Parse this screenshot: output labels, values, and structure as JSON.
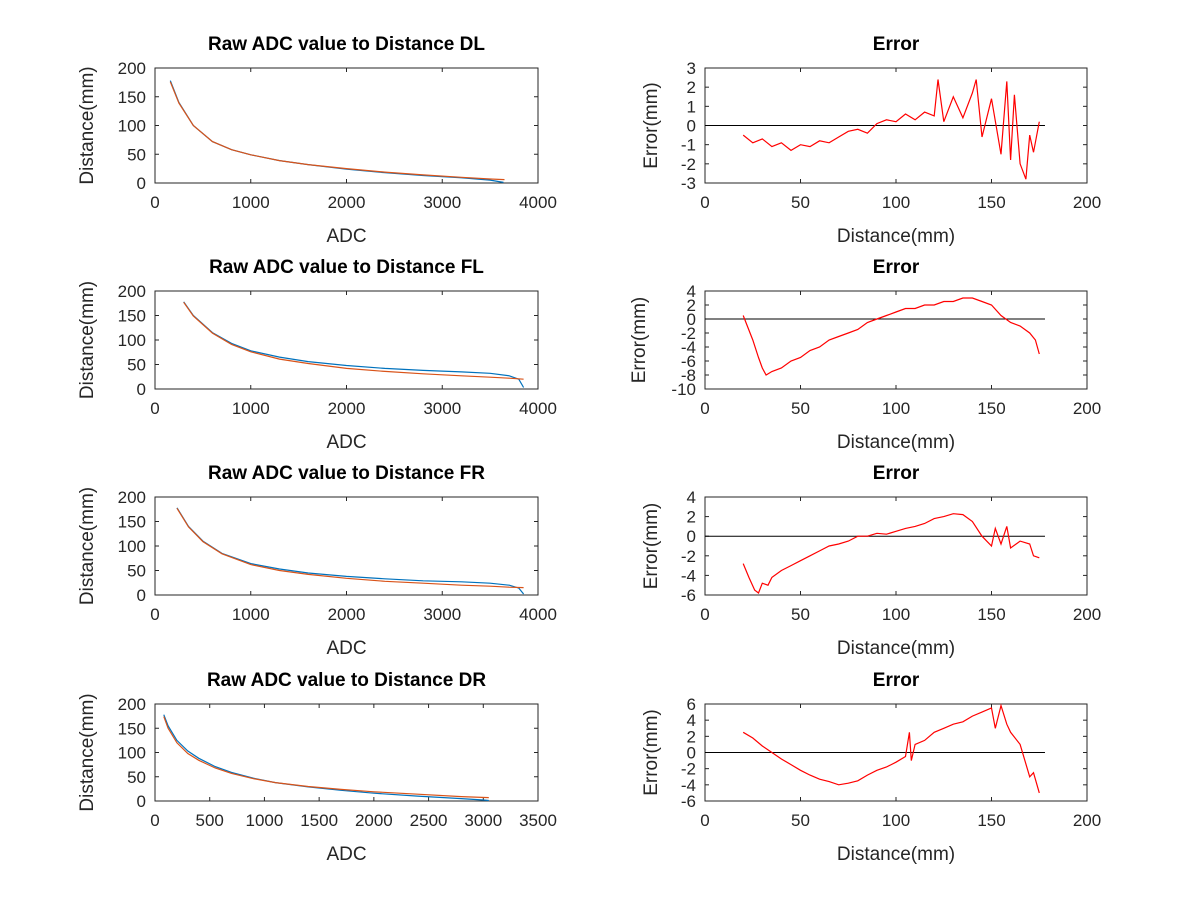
{
  "chart_data": [
    {
      "type": "line",
      "title": "Raw ADC value to Distance DL",
      "xlabel": "ADC",
      "ylabel": "Distance(mm)",
      "xlim": [
        0,
        4000
      ],
      "ylim": [
        0,
        200
      ],
      "xticks": [
        "0",
        "1000",
        "2000",
        "3000",
        "4000"
      ],
      "yticks": [
        "0",
        "50",
        "100",
        "150",
        "200"
      ],
      "grid": false,
      "series": [
        {
          "color": "#0072bd",
          "x": [
            160,
            250,
            400,
            600,
            800,
            1000,
            1300,
            1600,
            2000,
            2400,
            2800,
            3200,
            3500,
            3640
          ],
          "y": [
            178,
            140,
            100,
            72,
            58,
            49,
            39,
            32,
            24,
            18,
            13,
            9,
            5,
            1
          ]
        },
        {
          "color": "#d95319",
          "x": [
            160,
            250,
            400,
            600,
            800,
            1000,
            1300,
            1600,
            2000,
            2400,
            2800,
            3200,
            3500,
            3650
          ],
          "y": [
            176,
            139,
            100,
            72,
            58,
            49,
            39,
            32,
            25,
            19,
            14,
            10,
            7,
            6
          ]
        }
      ]
    },
    {
      "type": "line",
      "title": "Error",
      "xlabel": "Distance(mm)",
      "ylabel": "Error(mm)",
      "xlim": [
        0,
        200
      ],
      "ylim": [
        -3,
        3
      ],
      "xticks": [
        "0",
        "50",
        "100",
        "150",
        "200"
      ],
      "yticks": [
        "-3",
        "-2",
        "-1",
        "0",
        "1",
        "2",
        "3"
      ],
      "grid": false,
      "zero_line": true,
      "series": [
        {
          "color": "#ff0000",
          "x": [
            20,
            25,
            30,
            35,
            40,
            45,
            50,
            55,
            60,
            65,
            70,
            75,
            80,
            85,
            90,
            95,
            100,
            105,
            110,
            115,
            120,
            122,
            125,
            130,
            135,
            140,
            142,
            145,
            150,
            155,
            158,
            160,
            162,
            165,
            168,
            170,
            172,
            175
          ],
          "y": [
            -0.5,
            -0.9,
            -0.7,
            -1.1,
            -0.9,
            -1.3,
            -1.0,
            -1.1,
            -0.8,
            -0.9,
            -0.6,
            -0.3,
            -0.2,
            -0.4,
            0.1,
            0.3,
            0.2,
            0.6,
            0.3,
            0.7,
            0.5,
            2.4,
            0.2,
            1.5,
            0.4,
            1.7,
            2.4,
            -0.6,
            1.4,
            -1.5,
            2.3,
            -1.8,
            1.6,
            -2.0,
            -2.8,
            -0.5,
            -1.4,
            0.2
          ]
        }
      ]
    },
    {
      "type": "line",
      "title": "Raw ADC value to Distance FL",
      "xlabel": "ADC",
      "ylabel": "Distance(mm)",
      "xlim": [
        0,
        4000
      ],
      "ylim": [
        0,
        200
      ],
      "xticks": [
        "0",
        "1000",
        "2000",
        "3000",
        "4000"
      ],
      "yticks": [
        "0",
        "50",
        "100",
        "150",
        "200"
      ],
      "grid": false,
      "series": [
        {
          "color": "#0072bd",
          "x": [
            300,
            400,
            600,
            800,
            1000,
            1300,
            1600,
            2000,
            2400,
            2800,
            3200,
            3500,
            3700,
            3800,
            3850
          ],
          "y": [
            178,
            150,
            115,
            93,
            78,
            65,
            56,
            48,
            42,
            38,
            35,
            32,
            27,
            20,
            3
          ]
        },
        {
          "color": "#d95319",
          "x": [
            300,
            400,
            600,
            800,
            1000,
            1300,
            1600,
            2000,
            2400,
            2800,
            3200,
            3500,
            3700,
            3850
          ],
          "y": [
            177,
            149,
            114,
            91,
            76,
            61,
            52,
            42,
            36,
            31,
            27,
            24,
            22,
            20
          ]
        }
      ]
    },
    {
      "type": "line",
      "title": "Error",
      "xlabel": "Distance(mm)",
      "ylabel": "Error(mm)",
      "xlim": [
        0,
        200
      ],
      "ylim": [
        -10,
        4
      ],
      "xticks": [
        "0",
        "50",
        "100",
        "150",
        "200"
      ],
      "yticks": [
        "-10",
        "-8",
        "-6",
        "-4",
        "-2",
        "0",
        "2",
        "4"
      ],
      "grid": false,
      "zero_line": true,
      "series": [
        {
          "color": "#ff0000",
          "x": [
            20,
            25,
            28,
            30,
            32,
            35,
            40,
            45,
            50,
            55,
            60,
            65,
            70,
            75,
            80,
            85,
            90,
            95,
            100,
            105,
            110,
            115,
            120,
            125,
            130,
            135,
            140,
            145,
            150,
            155,
            160,
            165,
            170,
            173,
            175
          ],
          "y": [
            0.5,
            -3,
            -5.5,
            -7,
            -8,
            -7.5,
            -7,
            -6,
            -5.5,
            -4.5,
            -4,
            -3,
            -2.5,
            -2,
            -1.5,
            -0.5,
            0,
            0.5,
            1,
            1.5,
            1.5,
            2,
            2,
            2.5,
            2.5,
            3,
            3,
            2.5,
            2,
            0.5,
            -0.5,
            -1,
            -2,
            -3,
            -5
          ]
        }
      ]
    },
    {
      "type": "line",
      "title": "Raw ADC value to Distance FR",
      "xlabel": "ADC",
      "ylabel": "Distance(mm)",
      "xlim": [
        0,
        4000
      ],
      "ylim": [
        0,
        200
      ],
      "xticks": [
        "0",
        "1000",
        "2000",
        "3000",
        "4000"
      ],
      "yticks": [
        "0",
        "50",
        "100",
        "150",
        "200"
      ],
      "grid": false,
      "series": [
        {
          "color": "#0072bd",
          "x": [
            230,
            350,
            500,
            700,
            1000,
            1300,
            1600,
            2000,
            2400,
            2800,
            3200,
            3500,
            3700,
            3800,
            3850
          ],
          "y": [
            178,
            140,
            110,
            85,
            64,
            53,
            45,
            38,
            33,
            29,
            27,
            24,
            20,
            14,
            2
          ]
        },
        {
          "color": "#d95319",
          "x": [
            230,
            350,
            500,
            700,
            1000,
            1300,
            1600,
            2000,
            2400,
            2800,
            3200,
            3500,
            3700,
            3850
          ],
          "y": [
            177,
            139,
            109,
            84,
            62,
            50,
            42,
            34,
            28,
            24,
            20,
            18,
            16,
            15
          ]
        }
      ]
    },
    {
      "type": "line",
      "title": "Error",
      "xlabel": "Distance(mm)",
      "ylabel": "Error(mm)",
      "xlim": [
        0,
        200
      ],
      "ylim": [
        -6,
        4
      ],
      "xticks": [
        "0",
        "50",
        "100",
        "150",
        "200"
      ],
      "yticks": [
        "-6",
        "-4",
        "-2",
        "0",
        "2",
        "4"
      ],
      "grid": false,
      "zero_line": true,
      "series": [
        {
          "color": "#ff0000",
          "x": [
            20,
            23,
            26,
            28,
            30,
            33,
            35,
            40,
            45,
            50,
            55,
            60,
            65,
            70,
            75,
            80,
            85,
            90,
            95,
            100,
            105,
            110,
            115,
            120,
            125,
            130,
            135,
            140,
            145,
            150,
            152,
            155,
            158,
            160,
            165,
            170,
            172,
            175
          ],
          "y": [
            -2.8,
            -4.2,
            -5.5,
            -5.8,
            -4.8,
            -5.0,
            -4.2,
            -3.5,
            -3.0,
            -2.5,
            -2.0,
            -1.5,
            -1.0,
            -0.8,
            -0.5,
            0,
            0,
            0.3,
            0.2,
            0.5,
            0.8,
            1.0,
            1.3,
            1.8,
            2.0,
            2.3,
            2.2,
            1.5,
            0,
            -1.0,
            0.8,
            -0.8,
            1.0,
            -1.2,
            -0.5,
            -0.8,
            -2.0,
            -2.2
          ]
        }
      ]
    },
    {
      "type": "line",
      "title": "Raw ADC value to Distance DR",
      "xlabel": "ADC",
      "ylabel": "Distance(mm)",
      "xlim": [
        0,
        3500
      ],
      "ylim": [
        0,
        200
      ],
      "xticks": [
        "0",
        "500",
        "1000",
        "1500",
        "2000",
        "2500",
        "3000",
        "3500"
      ],
      "yticks": [
        "0",
        "50",
        "100",
        "150",
        "200"
      ],
      "grid": false,
      "series": [
        {
          "color": "#0072bd",
          "x": [
            80,
            120,
            200,
            300,
            400,
            550,
            700,
            900,
            1100,
            1400,
            1700,
            2000,
            2400,
            2800,
            3000,
            3050
          ],
          "y": [
            178,
            155,
            125,
            103,
            88,
            71,
            59,
            47,
            38,
            29,
            22,
            16,
            10,
            5,
            2,
            1
          ]
        },
        {
          "color": "#d95319",
          "x": [
            80,
            120,
            200,
            300,
            400,
            550,
            700,
            900,
            1100,
            1400,
            1700,
            2000,
            2400,
            2800,
            3050
          ],
          "y": [
            174,
            150,
            120,
            98,
            84,
            68,
            57,
            46,
            38,
            30,
            24,
            19,
            14,
            9,
            7
          ]
        }
      ]
    },
    {
      "type": "line",
      "title": "Error",
      "xlabel": "Distance(mm)",
      "ylabel": "Error(mm)",
      "xlim": [
        0,
        200
      ],
      "ylim": [
        -6,
        6
      ],
      "xticks": [
        "0",
        "50",
        "100",
        "150",
        "200"
      ],
      "yticks": [
        "-6",
        "-4",
        "-2",
        "0",
        "2",
        "4",
        "6"
      ],
      "grid": false,
      "zero_line": true,
      "series": [
        {
          "color": "#ff0000",
          "x": [
            20,
            25,
            30,
            35,
            40,
            45,
            50,
            55,
            60,
            65,
            70,
            75,
            80,
            85,
            90,
            95,
            100,
            105,
            107,
            108,
            110,
            115,
            120,
            125,
            130,
            135,
            140,
            145,
            150,
            152,
            155,
            158,
            160,
            165,
            170,
            172,
            175
          ],
          "y": [
            2.5,
            1.8,
            0.8,
            0,
            -0.8,
            -1.5,
            -2.2,
            -2.8,
            -3.3,
            -3.6,
            -4.0,
            -3.8,
            -3.5,
            -2.8,
            -2.2,
            -1.8,
            -1.2,
            -0.5,
            2.5,
            -1.0,
            1.0,
            1.5,
            2.5,
            3.0,
            3.5,
            3.8,
            4.5,
            5.0,
            5.5,
            3.0,
            5.8,
            3.5,
            2.5,
            1.0,
            -3.0,
            -2.5,
            -5.0
          ]
        }
      ]
    }
  ]
}
